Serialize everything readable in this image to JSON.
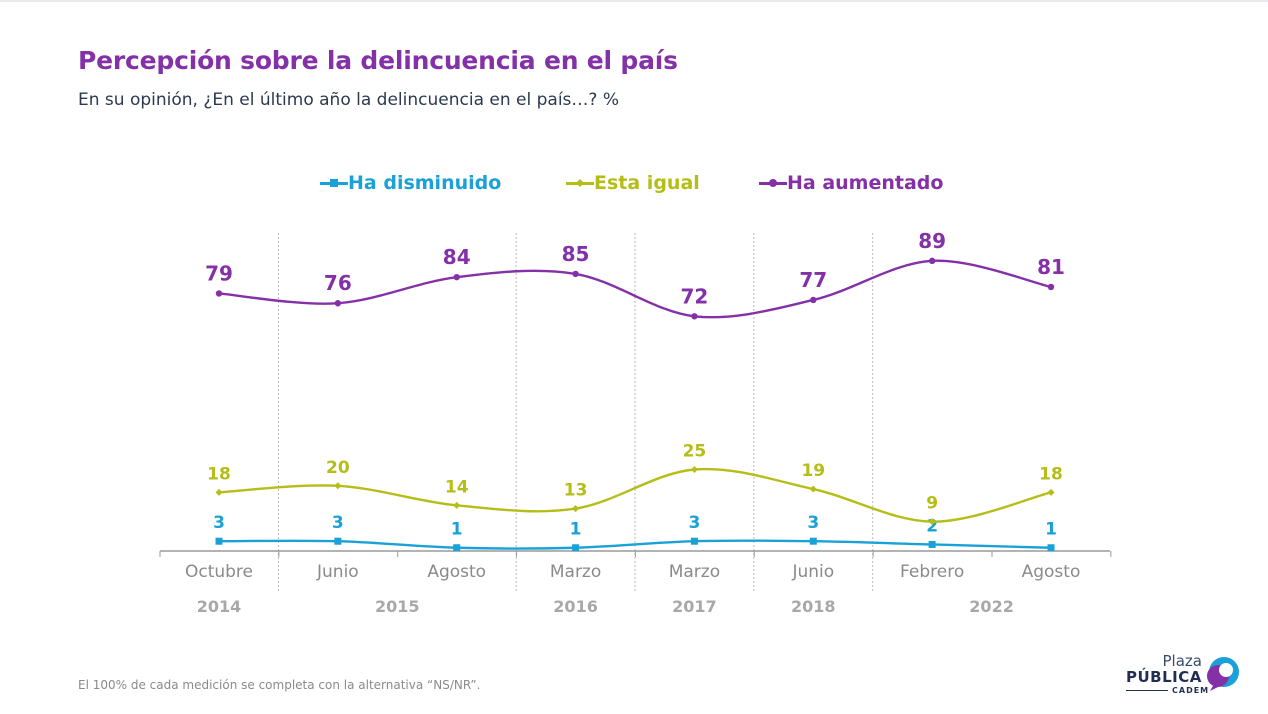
{
  "header": {
    "title": "Percepción sobre la delincuencia en el país",
    "subtitle": "En su opinión, ¿En el último año la delincuencia en el país…? %"
  },
  "footnote": "El 100% de cada medición se completa con la alternativa “NS/NR”.",
  "logo": {
    "top": "Plaza",
    "main": "PÚBLICA",
    "sub": "CADEM"
  },
  "colors": {
    "disminuido": "#1aa1d8",
    "igual": "#b5bd17",
    "aumentado": "#8431a8",
    "axis": "#9a9a9a",
    "divider": "#b8b8b8"
  },
  "chart_data": {
    "type": "line",
    "categories": [
      "Octubre",
      "Junio",
      "Agosto",
      "Marzo",
      "Marzo",
      "Junio",
      "Febrero",
      "Agosto"
    ],
    "year_groups": [
      {
        "label": "2014",
        "start": 0,
        "end": 0
      },
      {
        "label": "2015",
        "start": 1,
        "end": 2
      },
      {
        "label": "2016",
        "start": 3,
        "end": 3
      },
      {
        "label": "2017",
        "start": 4,
        "end": 4
      },
      {
        "label": "2018",
        "start": 5,
        "end": 5
      },
      {
        "label": "2022",
        "start": 6,
        "end": 7
      }
    ],
    "series": [
      {
        "name": "Ha disminuido",
        "key": "disminuido",
        "marker": "square",
        "values": [
          3,
          3,
          1,
          1,
          3,
          3,
          2,
          1
        ]
      },
      {
        "name": "Esta igual",
        "key": "igual",
        "marker": "diamond",
        "values": [
          18,
          20,
          14,
          13,
          25,
          19,
          9,
          18
        ]
      },
      {
        "name": "Ha aumentado",
        "key": "aumentado",
        "marker": "circle",
        "values": [
          79,
          76,
          84,
          85,
          72,
          77,
          89,
          81
        ]
      }
    ],
    "ylim": [
      0,
      100
    ],
    "legend_position": "top-center",
    "grid": false,
    "xlabel": "",
    "ylabel": ""
  }
}
